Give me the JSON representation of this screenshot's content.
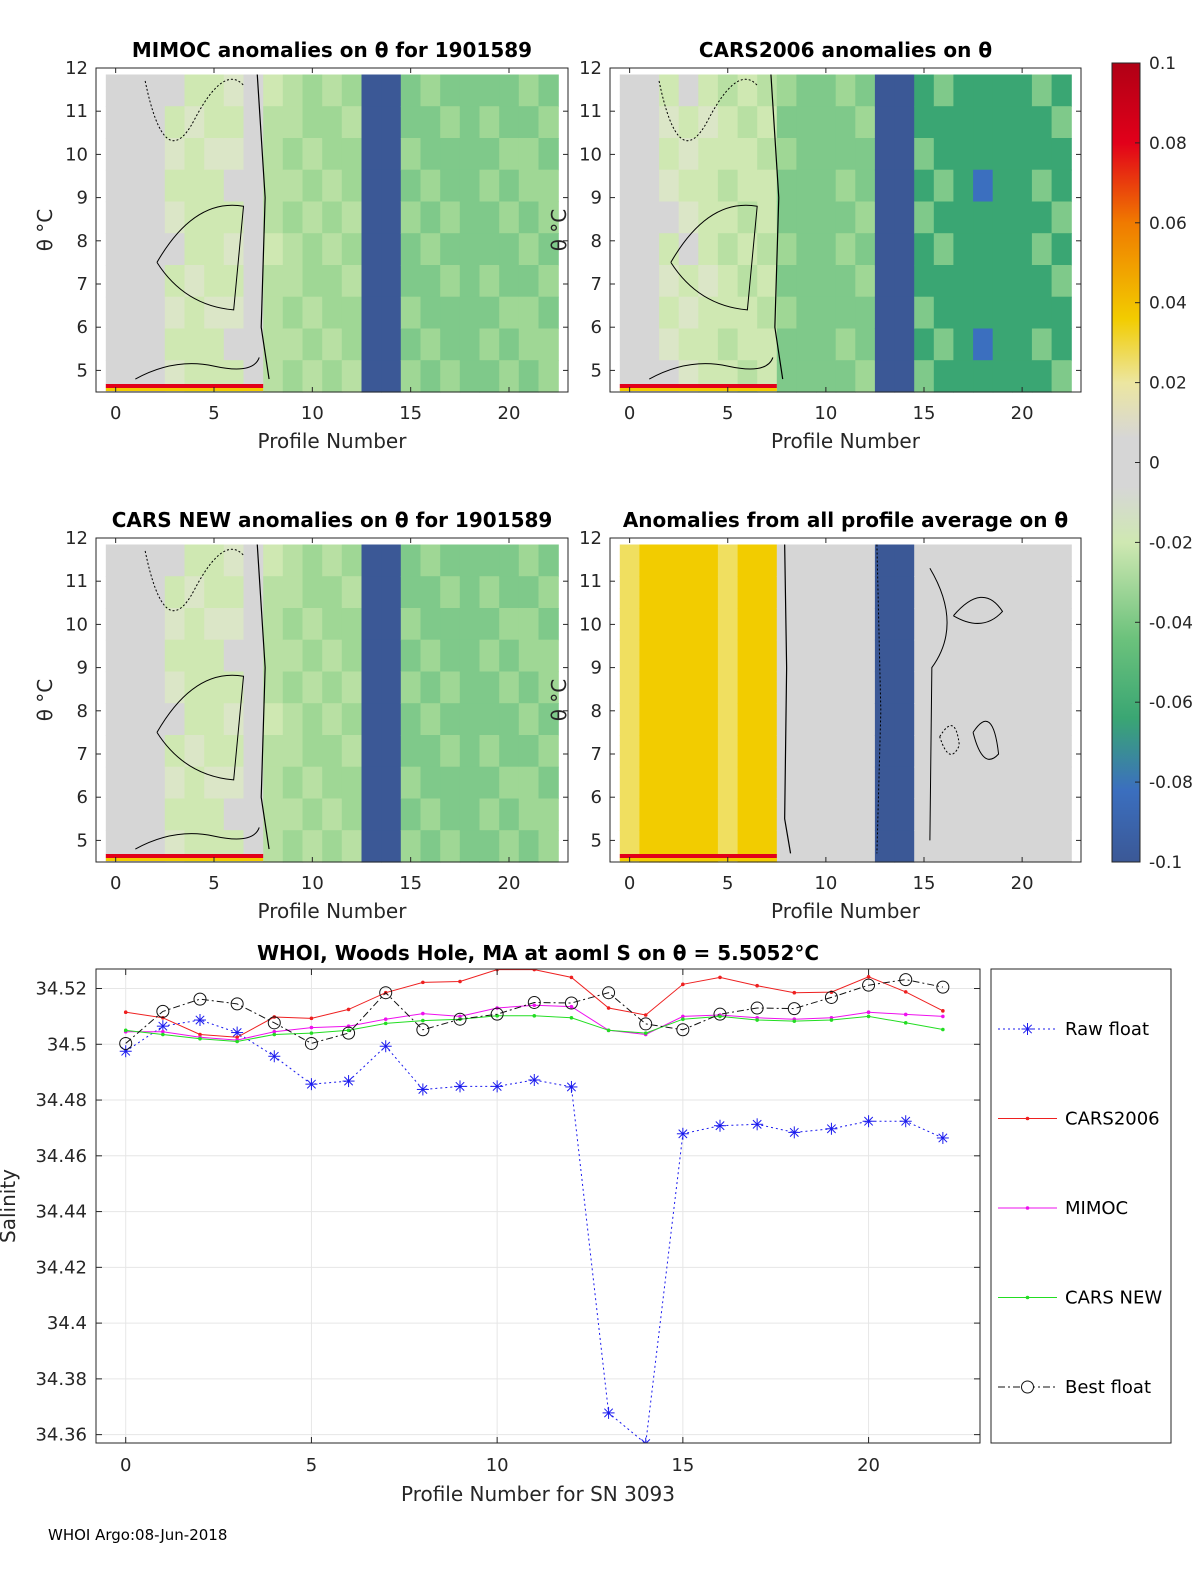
{
  "figure": {
    "footer": "WHOI Argo:08-Jun-2018"
  },
  "colorbar": {
    "tick_labels": [
      "0.1",
      "0.08",
      "0.06",
      "0.04",
      "0.02",
      "0",
      "-0.02",
      "-0.04",
      "-0.06",
      "-0.08",
      "-0.1"
    ],
    "range": [
      -0.1,
      0.1
    ],
    "colors": {
      "top": "#b00015",
      "red": "#e2001a",
      "orange": "#f07a00",
      "yellow": "#f2cc00",
      "paleyellow": "#ece6a0",
      "grey": "#d6d6d6",
      "palegreen": "#cfe8b2",
      "green": "#6cc27c",
      "teal": "#3aa673",
      "blue": "#3b6fbf",
      "navy": "#3b5896"
    }
  },
  "chart_data": [
    {
      "type": "heatmap",
      "title": "MIMOC anomalies on θ  for 1901589",
      "xlabel": "Profile Number",
      "ylabel": "θ °C",
      "xlim": [
        -1,
        23
      ],
      "ylim": [
        4.5,
        12
      ],
      "xticks": [
        "0",
        "5",
        "10",
        "15",
        "20"
      ],
      "yticks": [
        "5",
        "6",
        "7",
        "8",
        "9",
        "10",
        "11",
        "12"
      ],
      "profiles": 23,
      "column_anomaly": [
        0,
        0,
        0,
        -0.01,
        -0.015,
        -0.015,
        -0.01,
        0,
        -0.025,
        -0.03,
        -0.035,
        -0.035,
        -0.035,
        -0.1,
        -0.1,
        -0.045,
        -0.045,
        -0.045,
        -0.05,
        -0.045,
        -0.045,
        -0.04,
        -0.04
      ]
    },
    {
      "type": "heatmap",
      "title": "CARS2006 anomalies on θ",
      "xlabel": "Profile Number",
      "ylabel": "θ °C",
      "xlim": [
        -1,
        23
      ],
      "ylim": [
        4.5,
        12
      ],
      "xticks": [
        "0",
        "5",
        "10",
        "15",
        "20"
      ],
      "yticks": [
        "5",
        "6",
        "7",
        "8",
        "9",
        "10",
        "11",
        "12"
      ],
      "profiles": 23,
      "column_anomaly": [
        0,
        0,
        -0.01,
        -0.01,
        -0.015,
        -0.02,
        -0.02,
        -0.02,
        -0.045,
        -0.05,
        -0.05,
        -0.045,
        -0.045,
        -0.1,
        -0.1,
        -0.06,
        -0.06,
        -0.065,
        -0.07,
        -0.065,
        -0.065,
        -0.06,
        -0.06
      ]
    },
    {
      "type": "heatmap",
      "title": "CARS NEW anomalies on θ for 1901589",
      "xlabel": "Profile Number",
      "ylabel": "θ °C",
      "xlim": [
        -1,
        23
      ],
      "ylim": [
        4.5,
        12
      ],
      "xticks": [
        "0",
        "5",
        "10",
        "15",
        "20"
      ],
      "yticks": [
        "5",
        "6",
        "7",
        "8",
        "9",
        "10",
        "11",
        "12"
      ],
      "profiles": 23,
      "column_anomaly": [
        0,
        0,
        0,
        -0.01,
        -0.015,
        -0.015,
        -0.01,
        0,
        -0.025,
        -0.03,
        -0.035,
        -0.035,
        -0.035,
        -0.1,
        -0.1,
        -0.045,
        -0.045,
        -0.045,
        -0.05,
        -0.045,
        -0.045,
        -0.04,
        -0.04
      ]
    },
    {
      "type": "heatmap",
      "title": "Anomalies from all profile average on θ",
      "xlabel": "Profile Number",
      "ylabel": "θ °C",
      "xlim": [
        -1,
        23
      ],
      "ylim": [
        4.5,
        12
      ],
      "xticks": [
        "0",
        "5",
        "10",
        "15",
        "20"
      ],
      "yticks": [
        "5",
        "6",
        "7",
        "8",
        "9",
        "10",
        "11",
        "12"
      ],
      "profiles": 23,
      "column_anomaly": [
        0.03,
        0.03,
        0.032,
        0.035,
        0.03,
        0.025,
        0.03,
        0.03,
        0,
        0,
        0,
        0,
        0.005,
        -0.1,
        -0.1,
        0,
        0,
        0,
        0,
        0,
        0,
        0,
        0
      ]
    },
    {
      "type": "line",
      "title": "WHOI, Woods Hole, MA at aoml S on θ = 5.5052°C",
      "xlabel": "Profile Number for SN 3093",
      "ylabel": "Salinity",
      "xlim": [
        -0.8,
        23
      ],
      "ylim": [
        34.357,
        34.527
      ],
      "xticks": [
        0,
        5,
        10,
        15,
        20
      ],
      "yticks": [
        34.52,
        34.5,
        34.48,
        34.46,
        34.44,
        34.42,
        34.4,
        34.38,
        34.36
      ],
      "ytick_labels": [
        "34.52",
        "34.5",
        "34.48",
        "34.46",
        "34.44",
        "34.42",
        "34.4",
        "34.38",
        "34.36"
      ],
      "grid": true,
      "legend_position": "right-outside",
      "x": [
        0,
        1,
        2,
        3,
        4,
        5,
        6,
        7,
        8,
        9,
        10,
        11,
        12,
        13,
        14,
        15,
        16,
        17,
        18,
        19,
        20,
        21,
        22
      ],
      "series": [
        {
          "name": "Raw float",
          "color": "#1a1aee",
          "style": "dotted",
          "marker": "asterisk",
          "values": [
            34.4975,
            34.5065,
            34.5087,
            34.5042,
            34.4957,
            34.4857,
            34.4868,
            34.4993,
            34.4838,
            34.4849,
            34.4849,
            34.4872,
            34.4847,
            34.3678,
            34.3568,
            34.4679,
            34.4708,
            34.4713,
            34.4684,
            34.4697,
            34.4724,
            34.4724,
            34.4664
          ]
        },
        {
          "name": "CARS2006",
          "color": "#ee2020",
          "style": "solid",
          "marker": "dot",
          "values": [
            34.5115,
            34.5095,
            34.5035,
            34.5025,
            34.5098,
            34.5093,
            34.5125,
            34.5185,
            34.5222,
            34.5225,
            34.5268,
            34.5268,
            34.524,
            34.513,
            34.5105,
            34.5215,
            34.524,
            34.521,
            34.5185,
            34.5187,
            34.5242,
            34.5188,
            34.512
          ]
        },
        {
          "name": "MIMOC",
          "color": "#ee10ee",
          "style": "solid",
          "marker": "dot",
          "values": [
            34.5045,
            34.5045,
            34.5025,
            34.5015,
            34.5045,
            34.506,
            34.5065,
            34.509,
            34.511,
            34.51,
            34.513,
            34.514,
            34.5135,
            34.505,
            34.5035,
            34.51,
            34.5105,
            34.5095,
            34.509,
            34.5095,
            34.5115,
            34.5107,
            34.51
          ]
        },
        {
          "name": "CARS NEW",
          "color": "#22dd22",
          "style": "solid",
          "marker": "dot",
          "values": [
            34.505,
            34.5035,
            34.502,
            34.501,
            34.5035,
            34.504,
            34.505,
            34.5075,
            34.5085,
            34.509,
            34.5102,
            34.5102,
            34.5095,
            34.505,
            34.504,
            34.509,
            34.51,
            34.5087,
            34.5083,
            34.5087,
            34.51,
            34.5077,
            34.5053
          ]
        },
        {
          "name": "Best float",
          "color": "#111111",
          "style": "dashdot",
          "marker": "circle",
          "values": [
            34.5003,
            34.5118,
            34.5162,
            34.5145,
            34.5077,
            34.5003,
            34.504,
            34.5185,
            34.5052,
            34.509,
            34.5108,
            34.515,
            34.5148,
            34.5185,
            34.5073,
            34.5052,
            34.5108,
            34.513,
            34.5128,
            34.5168,
            34.5212,
            34.5232,
            34.5205
          ]
        }
      ]
    }
  ]
}
